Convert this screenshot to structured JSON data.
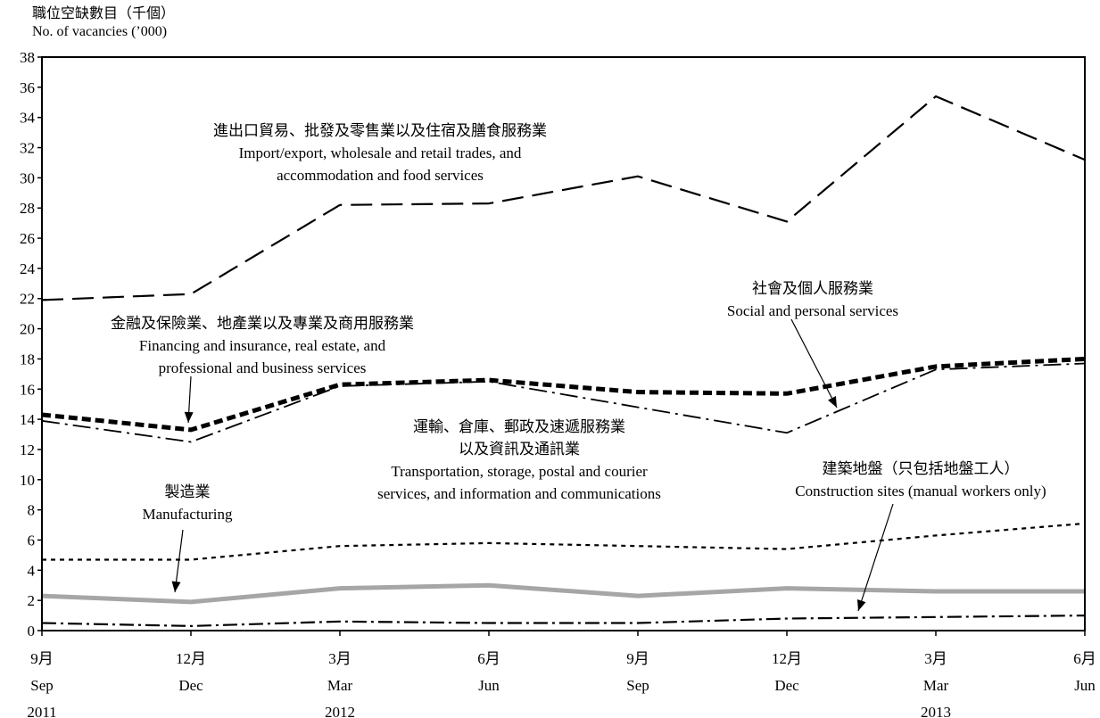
{
  "chart_data": {
    "type": "line",
    "ylabel_zh": "職位空缺數目（千個）",
    "ylabel_en": "No. of vacancies (’000)",
    "ylim": [
      0,
      38
    ],
    "ytick_step": 2,
    "x_ticks": [
      {
        "zh": "9月",
        "en": "Sep",
        "year": "2011"
      },
      {
        "zh": "12月",
        "en": "Dec",
        "year": ""
      },
      {
        "zh": "3月",
        "en": "Mar",
        "year": "2012"
      },
      {
        "zh": "6月",
        "en": "Jun",
        "year": ""
      },
      {
        "zh": "9月",
        "en": "Sep",
        "year": ""
      },
      {
        "zh": "12月",
        "en": "Dec",
        "year": ""
      },
      {
        "zh": "3月",
        "en": "Mar",
        "year": "2013"
      },
      {
        "zh": "6月",
        "en": "Jun",
        "year": ""
      }
    ],
    "series": [
      {
        "key": "trade",
        "values": [
          21.9,
          22.3,
          28.2,
          28.3,
          30.1,
          27.1,
          35.4,
          31.2
        ],
        "label": [
          "進出口貿易、批發及零售業以及住宿及膳食服務業",
          "Import/export, wholesale and retail trades, and",
          "accommodation and food services"
        ]
      },
      {
        "key": "social",
        "values": [
          13.9,
          12.5,
          16.2,
          16.5,
          14.8,
          13.1,
          17.3,
          17.7
        ],
        "label": [
          "社會及個人服務業",
          "Social and personal services"
        ]
      },
      {
        "key": "finance",
        "values": [
          14.3,
          13.3,
          16.3,
          16.6,
          15.8,
          15.7,
          17.5,
          18.0
        ],
        "label": [
          "金融及保險業、地產業以及專業及商用服務業",
          "Financing and insurance, real estate, and",
          "professional and business services"
        ]
      },
      {
        "key": "transport",
        "values": [
          4.7,
          4.7,
          5.6,
          5.8,
          5.6,
          5.4,
          6.3,
          7.1
        ],
        "label": [
          "運輸、倉庫、郵政及速遞服務業",
          "以及資訊及通訊業",
          "Transportation, storage, postal and courier",
          "services, and information and communications"
        ]
      },
      {
        "key": "manufacturing",
        "values": [
          2.3,
          1.9,
          2.8,
          3.0,
          2.3,
          2.8,
          2.6,
          2.6
        ],
        "label": [
          "製造業",
          "Manufacturing"
        ]
      },
      {
        "key": "construction",
        "values": [
          0.5,
          0.3,
          0.6,
          0.5,
          0.5,
          0.8,
          0.9,
          1.0
        ],
        "label": [
          "建築地盤（只包括地盤工人）",
          "Construction sites (manual workers only)"
        ]
      }
    ]
  }
}
